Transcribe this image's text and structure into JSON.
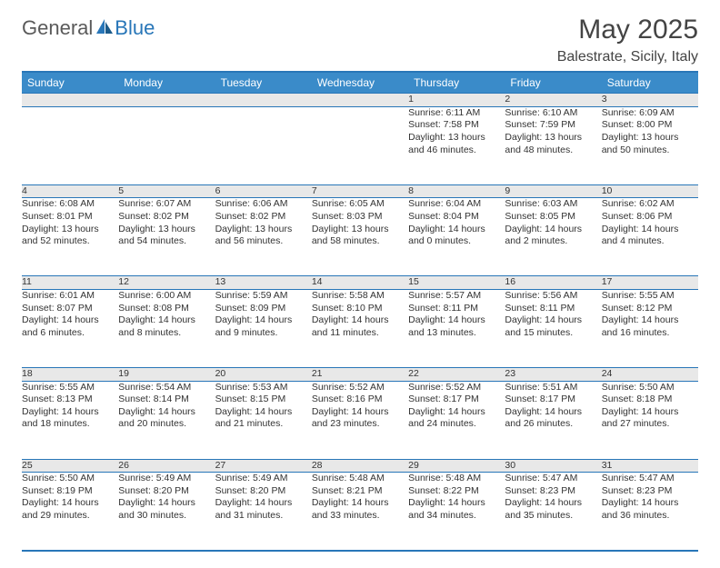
{
  "logo": {
    "general": "General",
    "blue": "Blue"
  },
  "title": "May 2025",
  "location": "Balestrate, Sicily, Italy",
  "colors": {
    "header_bg": "#3a8bc9",
    "border": "#2876b8",
    "daynum_bg": "#e8e8e8",
    "text": "#333333",
    "logo_gray": "#5a5a5a",
    "logo_blue": "#2876b8"
  },
  "fonts": {
    "body_pt": 10.5,
    "header_pt": 12,
    "title_pt": 30,
    "location_pt": 16
  },
  "weekdays": [
    "Sunday",
    "Monday",
    "Tuesday",
    "Wednesday",
    "Thursday",
    "Friday",
    "Saturday"
  ],
  "weeks": [
    [
      null,
      null,
      null,
      null,
      {
        "n": "1",
        "sr": "Sunrise: 6:11 AM",
        "ss": "Sunset: 7:58 PM",
        "d1": "Daylight: 13 hours",
        "d2": "and 46 minutes."
      },
      {
        "n": "2",
        "sr": "Sunrise: 6:10 AM",
        "ss": "Sunset: 7:59 PM",
        "d1": "Daylight: 13 hours",
        "d2": "and 48 minutes."
      },
      {
        "n": "3",
        "sr": "Sunrise: 6:09 AM",
        "ss": "Sunset: 8:00 PM",
        "d1": "Daylight: 13 hours",
        "d2": "and 50 minutes."
      }
    ],
    [
      {
        "n": "4",
        "sr": "Sunrise: 6:08 AM",
        "ss": "Sunset: 8:01 PM",
        "d1": "Daylight: 13 hours",
        "d2": "and 52 minutes."
      },
      {
        "n": "5",
        "sr": "Sunrise: 6:07 AM",
        "ss": "Sunset: 8:02 PM",
        "d1": "Daylight: 13 hours",
        "d2": "and 54 minutes."
      },
      {
        "n": "6",
        "sr": "Sunrise: 6:06 AM",
        "ss": "Sunset: 8:02 PM",
        "d1": "Daylight: 13 hours",
        "d2": "and 56 minutes."
      },
      {
        "n": "7",
        "sr": "Sunrise: 6:05 AM",
        "ss": "Sunset: 8:03 PM",
        "d1": "Daylight: 13 hours",
        "d2": "and 58 minutes."
      },
      {
        "n": "8",
        "sr": "Sunrise: 6:04 AM",
        "ss": "Sunset: 8:04 PM",
        "d1": "Daylight: 14 hours",
        "d2": "and 0 minutes."
      },
      {
        "n": "9",
        "sr": "Sunrise: 6:03 AM",
        "ss": "Sunset: 8:05 PM",
        "d1": "Daylight: 14 hours",
        "d2": "and 2 minutes."
      },
      {
        "n": "10",
        "sr": "Sunrise: 6:02 AM",
        "ss": "Sunset: 8:06 PM",
        "d1": "Daylight: 14 hours",
        "d2": "and 4 minutes."
      }
    ],
    [
      {
        "n": "11",
        "sr": "Sunrise: 6:01 AM",
        "ss": "Sunset: 8:07 PM",
        "d1": "Daylight: 14 hours",
        "d2": "and 6 minutes."
      },
      {
        "n": "12",
        "sr": "Sunrise: 6:00 AM",
        "ss": "Sunset: 8:08 PM",
        "d1": "Daylight: 14 hours",
        "d2": "and 8 minutes."
      },
      {
        "n": "13",
        "sr": "Sunrise: 5:59 AM",
        "ss": "Sunset: 8:09 PM",
        "d1": "Daylight: 14 hours",
        "d2": "and 9 minutes."
      },
      {
        "n": "14",
        "sr": "Sunrise: 5:58 AM",
        "ss": "Sunset: 8:10 PM",
        "d1": "Daylight: 14 hours",
        "d2": "and 11 minutes."
      },
      {
        "n": "15",
        "sr": "Sunrise: 5:57 AM",
        "ss": "Sunset: 8:11 PM",
        "d1": "Daylight: 14 hours",
        "d2": "and 13 minutes."
      },
      {
        "n": "16",
        "sr": "Sunrise: 5:56 AM",
        "ss": "Sunset: 8:11 PM",
        "d1": "Daylight: 14 hours",
        "d2": "and 15 minutes."
      },
      {
        "n": "17",
        "sr": "Sunrise: 5:55 AM",
        "ss": "Sunset: 8:12 PM",
        "d1": "Daylight: 14 hours",
        "d2": "and 16 minutes."
      }
    ],
    [
      {
        "n": "18",
        "sr": "Sunrise: 5:55 AM",
        "ss": "Sunset: 8:13 PM",
        "d1": "Daylight: 14 hours",
        "d2": "and 18 minutes."
      },
      {
        "n": "19",
        "sr": "Sunrise: 5:54 AM",
        "ss": "Sunset: 8:14 PM",
        "d1": "Daylight: 14 hours",
        "d2": "and 20 minutes."
      },
      {
        "n": "20",
        "sr": "Sunrise: 5:53 AM",
        "ss": "Sunset: 8:15 PM",
        "d1": "Daylight: 14 hours",
        "d2": "and 21 minutes."
      },
      {
        "n": "21",
        "sr": "Sunrise: 5:52 AM",
        "ss": "Sunset: 8:16 PM",
        "d1": "Daylight: 14 hours",
        "d2": "and 23 minutes."
      },
      {
        "n": "22",
        "sr": "Sunrise: 5:52 AM",
        "ss": "Sunset: 8:17 PM",
        "d1": "Daylight: 14 hours",
        "d2": "and 24 minutes."
      },
      {
        "n": "23",
        "sr": "Sunrise: 5:51 AM",
        "ss": "Sunset: 8:17 PM",
        "d1": "Daylight: 14 hours",
        "d2": "and 26 minutes."
      },
      {
        "n": "24",
        "sr": "Sunrise: 5:50 AM",
        "ss": "Sunset: 8:18 PM",
        "d1": "Daylight: 14 hours",
        "d2": "and 27 minutes."
      }
    ],
    [
      {
        "n": "25",
        "sr": "Sunrise: 5:50 AM",
        "ss": "Sunset: 8:19 PM",
        "d1": "Daylight: 14 hours",
        "d2": "and 29 minutes."
      },
      {
        "n": "26",
        "sr": "Sunrise: 5:49 AM",
        "ss": "Sunset: 8:20 PM",
        "d1": "Daylight: 14 hours",
        "d2": "and 30 minutes."
      },
      {
        "n": "27",
        "sr": "Sunrise: 5:49 AM",
        "ss": "Sunset: 8:20 PM",
        "d1": "Daylight: 14 hours",
        "d2": "and 31 minutes."
      },
      {
        "n": "28",
        "sr": "Sunrise: 5:48 AM",
        "ss": "Sunset: 8:21 PM",
        "d1": "Daylight: 14 hours",
        "d2": "and 33 minutes."
      },
      {
        "n": "29",
        "sr": "Sunrise: 5:48 AM",
        "ss": "Sunset: 8:22 PM",
        "d1": "Daylight: 14 hours",
        "d2": "and 34 minutes."
      },
      {
        "n": "30",
        "sr": "Sunrise: 5:47 AM",
        "ss": "Sunset: 8:23 PM",
        "d1": "Daylight: 14 hours",
        "d2": "and 35 minutes."
      },
      {
        "n": "31",
        "sr": "Sunrise: 5:47 AM",
        "ss": "Sunset: 8:23 PM",
        "d1": "Daylight: 14 hours",
        "d2": "and 36 minutes."
      }
    ]
  ]
}
